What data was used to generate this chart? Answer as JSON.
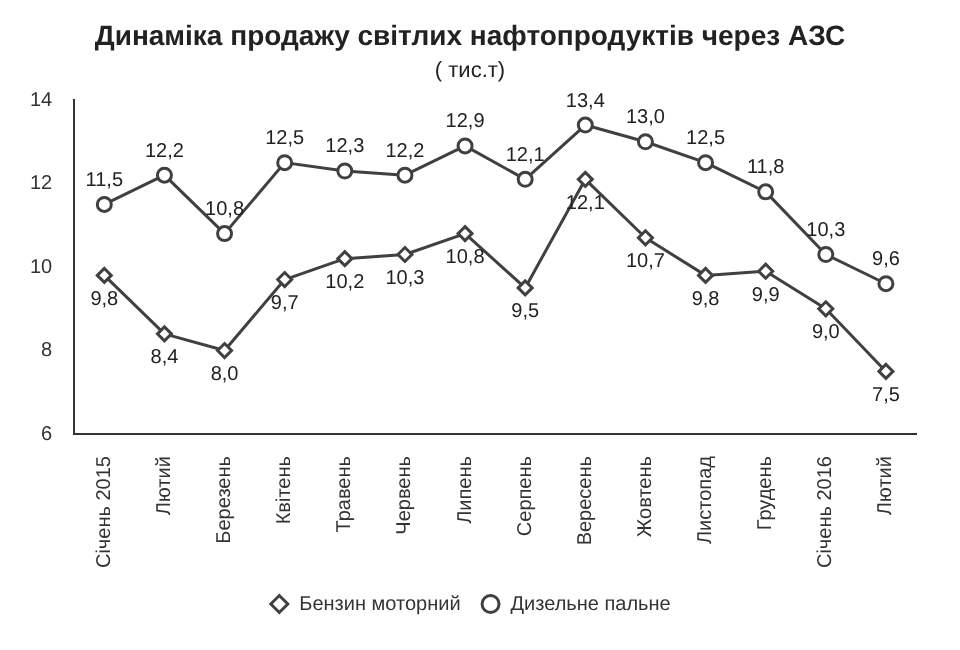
{
  "chart_data": {
    "type": "line",
    "title": "Динаміка продажу світлих нафтопродуктів через АЗС",
    "subtitle": "( тис.т)",
    "categories": [
      "Січень 2015",
      "Лютий",
      "Березень",
      "Квітень",
      "Травень",
      "Червень",
      "Липень",
      "Серпень",
      "Вересень",
      "Жовтень",
      "Листопад",
      "Грудень",
      "Січень 2016",
      "Лютий"
    ],
    "series": [
      {
        "name": "Бензин моторний",
        "color": "#404040",
        "marker": "diamond",
        "values": [
          9.8,
          8.4,
          8.0,
          9.7,
          10.2,
          10.3,
          10.8,
          9.5,
          12.1,
          10.7,
          9.8,
          9.9,
          9.0,
          7.5
        ],
        "value_labels": [
          "9,8",
          "8,4",
          "8,0",
          "9,7",
          "10,2",
          "10,3",
          "10,8",
          "9,5",
          "12,1",
          "10,7",
          "9,8",
          "9,9",
          "9,0",
          "7,5"
        ]
      },
      {
        "name": "Дизельне пальне",
        "color": "#404040",
        "marker": "circle",
        "values": [
          11.5,
          12.2,
          10.8,
          12.5,
          12.3,
          12.2,
          12.9,
          12.1,
          13.4,
          13.0,
          12.5,
          11.8,
          10.3,
          9.6
        ],
        "value_labels": [
          "11,5",
          "12,2",
          "10,8",
          "12,5",
          "12,3",
          "12,2",
          "12,9",
          "12,1",
          "13,4",
          "13,0",
          "12,5",
          "11,8",
          "10,3",
          "9,6"
        ]
      }
    ],
    "ylim": [
      6,
      14
    ],
    "yticks": [
      6,
      8,
      10,
      12,
      14
    ],
    "grid": false,
    "legend": "bottom",
    "line_style": "solid"
  }
}
